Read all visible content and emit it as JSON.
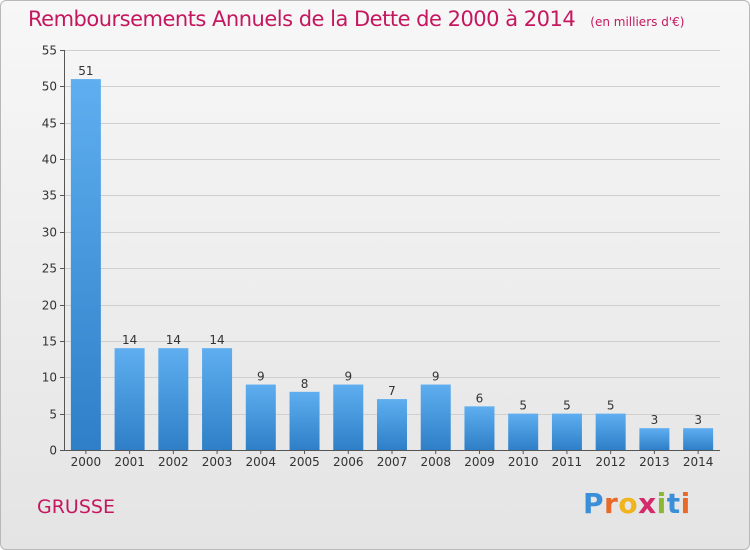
{
  "title": "Remboursements Annuels de la Dette de 2000 à 2014",
  "subtitle": "(en milliers d'€)",
  "commune": "GRUSSE",
  "logo_letters": [
    "P",
    "r",
    "o",
    "x",
    "i",
    "t",
    "i"
  ],
  "colors": {
    "title": "#c5175f",
    "bar_light": "#5eaef0",
    "bar_dark": "#2f7fc8",
    "grid": "#cfcfcf"
  },
  "chart_data": {
    "type": "bar",
    "title": "Remboursements Annuels de la Dette de 2000 à 2014",
    "xlabel": "",
    "ylabel": "",
    "ylim": [
      0,
      55
    ],
    "yticks": [
      0,
      5,
      10,
      15,
      20,
      25,
      30,
      35,
      40,
      45,
      50,
      55
    ],
    "grid": true,
    "categories": [
      "2000",
      "2001",
      "2002",
      "2003",
      "2004",
      "2005",
      "2006",
      "2007",
      "2008",
      "2009",
      "2010",
      "2011",
      "2012",
      "2013",
      "2014"
    ],
    "values": [
      51,
      14,
      14,
      14,
      9,
      8,
      9,
      7,
      9,
      6,
      5,
      5,
      5,
      3,
      3
    ]
  }
}
